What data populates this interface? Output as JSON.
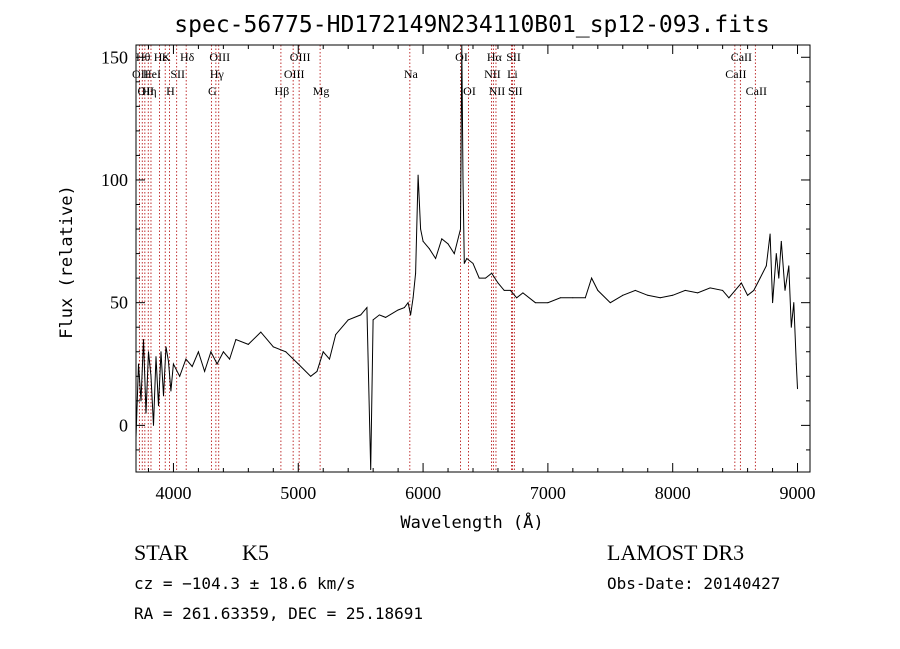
{
  "chart_data": {
    "type": "line",
    "title": "spec-56775-HD172149N234110B01_sp12-093.fits",
    "xlabel": "Wavelength (Å)",
    "ylabel": "Flux (relative)",
    "xlim": [
      3700,
      9100
    ],
    "ylim": [
      -19,
      155
    ],
    "x_ticks": [
      4000,
      5000,
      6000,
      7000,
      8000,
      9000
    ],
    "x_tick_labels": [
      "4000",
      "5000",
      "6000",
      "7000",
      "8000",
      "9000"
    ],
    "y_ticks": [
      0,
      50,
      100,
      150
    ],
    "y_tick_labels": [
      "0",
      "50",
      "100",
      "150"
    ],
    "series": [
      {
        "x": [
          3700,
          3720,
          3740,
          3760,
          3780,
          3800,
          3820,
          3840,
          3860,
          3880,
          3900,
          3920,
          3940,
          3960,
          3980,
          4000,
          4050,
          4100,
          4150,
          4200,
          4250,
          4300,
          4350,
          4400,
          4450,
          4500,
          4600,
          4700,
          4800,
          4900,
          5000,
          5100,
          5150,
          5200,
          5250,
          5300,
          5400,
          5500,
          5550,
          5580,
          5600,
          5650,
          5700,
          5800,
          5850,
          5880,
          5900,
          5920,
          5940,
          5960,
          5980,
          6000,
          6050,
          6100,
          6150,
          6200,
          6250,
          6300,
          6310,
          6320,
          6330,
          6350,
          6400,
          6450,
          6500,
          6550,
          6600,
          6650,
          6700,
          6750,
          6800,
          6900,
          7000,
          7100,
          7200,
          7300,
          7350,
          7400,
          7500,
          7600,
          7700,
          7800,
          7900,
          8000,
          8100,
          8200,
          8300,
          8400,
          8450,
          8500,
          8550,
          8600,
          8650,
          8700,
          8750,
          8780,
          8800,
          8830,
          8850,
          8870,
          8900,
          8930,
          8950,
          8970,
          8990,
          9000
        ],
        "y": [
          -5,
          25,
          10,
          35,
          5,
          30,
          20,
          0,
          28,
          8,
          30,
          12,
          32,
          26,
          14,
          25,
          20,
          27,
          24,
          30,
          22,
          30,
          25,
          30,
          27,
          35,
          33,
          38,
          32,
          30,
          25,
          20,
          22,
          30,
          27,
          37,
          43,
          45,
          48,
          -18,
          43,
          45,
          44,
          47,
          48,
          50,
          45,
          52,
          62,
          102,
          80,
          75,
          72,
          68,
          76,
          74,
          70,
          80,
          155,
          100,
          66,
          68,
          66,
          60,
          60,
          62,
          58,
          55,
          55,
          52,
          54,
          50,
          50,
          52,
          52,
          52,
          60,
          55,
          50,
          53,
          55,
          53,
          52,
          53,
          55,
          54,
          56,
          55,
          52,
          55,
          58,
          53,
          55,
          60,
          65,
          78,
          50,
          70,
          60,
          75,
          55,
          65,
          40,
          50,
          25,
          15
        ]
      }
    ],
    "lines": [
      {
        "wl": 3727,
        "label": "OII",
        "row": 2
      },
      {
        "wl": 3750,
        "label": "Hθ",
        "row": 1
      },
      {
        "wl": 3771,
        "label": "OII",
        "row": 3
      },
      {
        "wl": 3798,
        "label": "Hη",
        "row": 3
      },
      {
        "wl": 3820,
        "label": "HeI",
        "row": 2
      },
      {
        "wl": 3889,
        "label": "Hε",
        "row": 1
      },
      {
        "wl": 3934,
        "label": "K",
        "row": 1
      },
      {
        "wl": 3968,
        "label": "H",
        "row": 3
      },
      {
        "wl": 4026,
        "label": "SII",
        "row": 2
      },
      {
        "wl": 4102,
        "label": "Hδ",
        "row": 1
      },
      {
        "wl": 4304,
        "label": "G",
        "row": 3
      },
      {
        "wl": 4340,
        "label": "Hγ",
        "row": 2
      },
      {
        "wl": 4363,
        "label": "OIII",
        "row": 1
      },
      {
        "wl": 4861,
        "label": "Hβ",
        "row": 3
      },
      {
        "wl": 4959,
        "label": "OIII",
        "row": 2
      },
      {
        "wl": 5007,
        "label": "OIII",
        "row": 1
      },
      {
        "wl": 5175,
        "label": "Mg",
        "row": 3
      },
      {
        "wl": 5894,
        "label": "Na",
        "row": 2
      },
      {
        "wl": 6300,
        "label": "OI",
        "row": 1
      },
      {
        "wl": 6364,
        "label": "OI",
        "row": 3
      },
      {
        "wl": 6548,
        "label": "NII",
        "row": 2
      },
      {
        "wl": 6563,
        "label": "Hα",
        "row": 1
      },
      {
        "wl": 6584,
        "label": "NII",
        "row": 3
      },
      {
        "wl": 6708,
        "label": "Li",
        "row": 2
      },
      {
        "wl": 6717,
        "label": "SII",
        "row": 1
      },
      {
        "wl": 6731,
        "label": "SII",
        "row": 3
      },
      {
        "wl": 8498,
        "label": "CaII",
        "row": 2
      },
      {
        "wl": 8542,
        "label": "CaII",
        "row": 1
      },
      {
        "wl": 8662,
        "label": "CaII",
        "row": 3
      }
    ]
  },
  "info": {
    "class": "STAR",
    "subclass": "K5",
    "survey": "LAMOST DR3",
    "cz": "cz = −104.3 ± 18.6 km/s",
    "obs_date": "Obs-Date: 20140427",
    "coords": "RA = 261.63359, DEC =  25.18691"
  },
  "colors": {
    "spectrum": "#000000",
    "line_markers": "#b00000"
  }
}
